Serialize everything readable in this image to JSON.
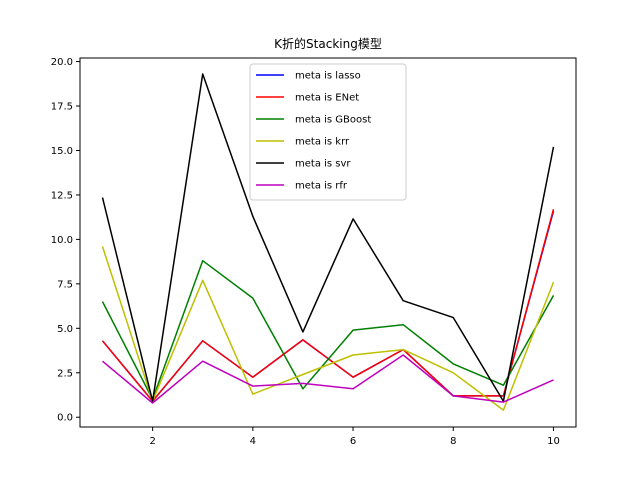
{
  "chart_data": {
    "type": "line",
    "title": "K折的Stacking模型",
    "xlabel": "",
    "ylabel": "",
    "xlim": [
      0.55,
      10.45
    ],
    "ylim": [
      -0.55,
      20.2
    ],
    "x": [
      1,
      2,
      3,
      4,
      5,
      6,
      7,
      8,
      9,
      10
    ],
    "x_ticks": [
      2,
      4,
      6,
      8,
      10
    ],
    "y_ticks": [
      0.0,
      2.5,
      5.0,
      7.5,
      10.0,
      12.5,
      15.0,
      17.5,
      20.0
    ],
    "y_tick_labels": [
      "0.0",
      "2.5",
      "5.0",
      "7.5",
      "10.0",
      "12.5",
      "15.0",
      "17.5",
      "20.0"
    ],
    "legend_position": "top-center",
    "grid": false,
    "series": [
      {
        "name": "meta is lasso",
        "color": "#0000ff",
        "values": [
          4.3,
          0.9,
          4.3,
          2.25,
          4.35,
          2.25,
          3.8,
          1.2,
          1.2,
          11.6
        ]
      },
      {
        "name": "meta is ENet",
        "color": "#ff0000",
        "values": [
          4.3,
          0.9,
          4.3,
          2.25,
          4.35,
          2.25,
          3.8,
          1.2,
          1.2,
          11.7
        ]
      },
      {
        "name": "meta is GBoost",
        "color": "#008000",
        "values": [
          6.5,
          1.0,
          8.8,
          6.7,
          1.6,
          4.9,
          5.2,
          3.0,
          1.8,
          6.85
        ]
      },
      {
        "name": "meta is krr",
        "color": "#bfbf00",
        "values": [
          9.6,
          0.9,
          7.7,
          1.3,
          2.4,
          3.5,
          3.8,
          2.5,
          0.4,
          7.6
        ]
      },
      {
        "name": "meta is svr",
        "color": "#000000",
        "values": [
          12.35,
          0.9,
          19.3,
          11.3,
          4.8,
          11.15,
          6.55,
          5.6,
          0.9,
          15.2
        ]
      },
      {
        "name": "meta is rfr",
        "color": "#bf00bf",
        "values": [
          3.15,
          0.8,
          3.15,
          1.75,
          1.9,
          1.6,
          3.5,
          1.2,
          0.85,
          2.1
        ]
      }
    ]
  }
}
